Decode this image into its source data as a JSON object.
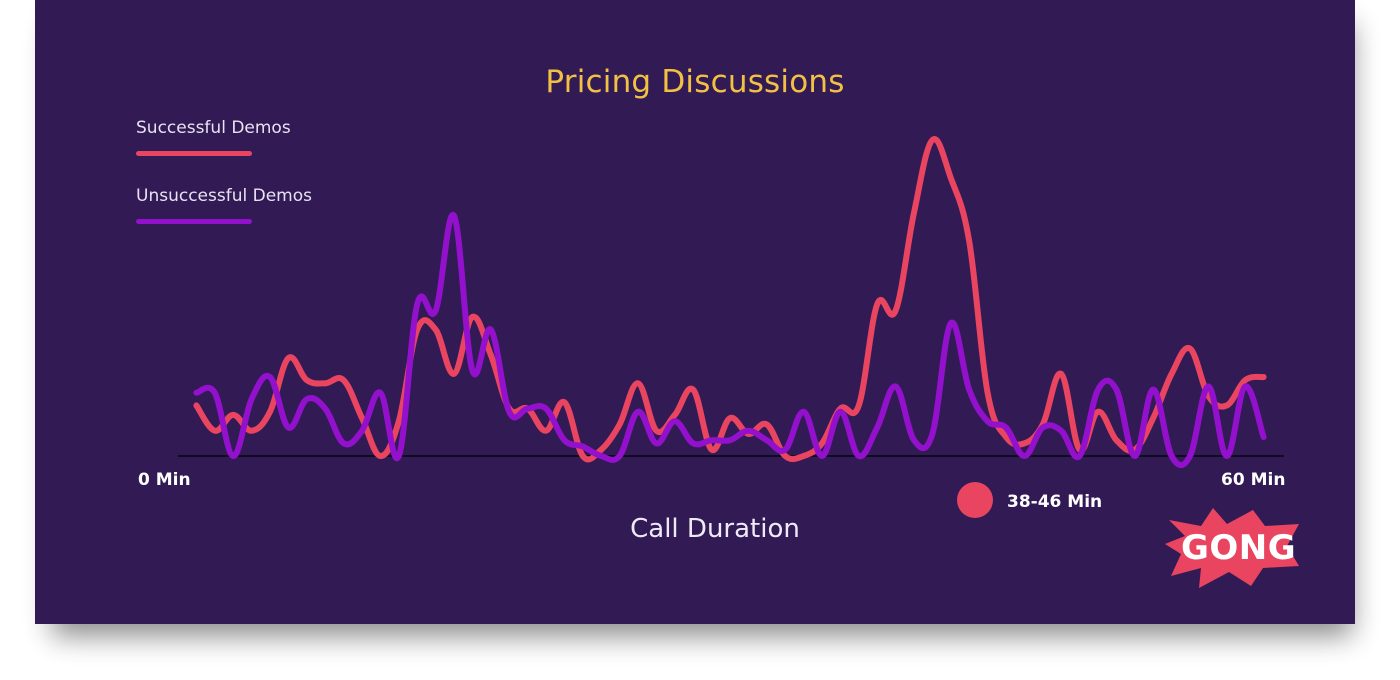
{
  "chart_data": {
    "type": "line",
    "title": "Pricing Discussions",
    "xlabel": "Call Duration",
    "ylabel": "",
    "xlim": [
      0,
      60
    ],
    "ylim": [
      0,
      100
    ],
    "x_tick_labels": [
      "0 Min",
      "60 Min"
    ],
    "legend_placement": "top-left",
    "grid": false,
    "highlight": {
      "label": "38-46 Min",
      "range": [
        38,
        46
      ]
    },
    "series": [
      {
        "name": "Successful Demos",
        "color": "#e94560",
        "x": [
          1,
          2,
          3,
          4,
          5,
          6,
          7,
          8,
          9,
          10,
          11,
          12,
          13,
          14,
          15,
          16,
          17,
          18,
          19,
          20,
          21,
          22,
          23,
          24,
          25,
          26,
          27,
          28,
          29,
          30,
          31,
          32,
          33,
          34,
          35,
          36,
          37,
          38,
          39,
          40,
          41,
          42,
          43,
          44,
          45,
          46,
          47,
          48,
          49,
          50,
          51,
          52,
          53,
          54,
          55,
          56,
          57,
          58,
          59
        ],
        "values": [
          16,
          8,
          13,
          8,
          14,
          31,
          24,
          23,
          24,
          12,
          0,
          11,
          40,
          40,
          26,
          44,
          32,
          15,
          15,
          8,
          17,
          0,
          2,
          10,
          23,
          8,
          13,
          21,
          2,
          12,
          7,
          10,
          0,
          0,
          4,
          15,
          16,
          48,
          46,
          77,
          100,
          88,
          68,
          20,
          6,
          4,
          10,
          26,
          2,
          14,
          5,
          2,
          12,
          26,
          34,
          19,
          16,
          24,
          25
        ]
      },
      {
        "name": "Unsuccessful Demos",
        "color": "#9311cc",
        "x": [
          1,
          2,
          3,
          4,
          5,
          6,
          7,
          8,
          9,
          10,
          11,
          12,
          13,
          14,
          15,
          16,
          17,
          18,
          19,
          20,
          21,
          22,
          23,
          24,
          25,
          26,
          27,
          28,
          29,
          30,
          31,
          32,
          33,
          34,
          35,
          36,
          37,
          38,
          39,
          40,
          41,
          42,
          43,
          44,
          45,
          46,
          47,
          48,
          49,
          50,
          51,
          52,
          53,
          54,
          55,
          56,
          57,
          58,
          59
        ],
        "values": [
          20,
          20,
          0,
          18,
          25,
          9,
          18,
          15,
          4,
          8,
          20,
          0,
          48,
          46,
          76,
          27,
          40,
          14,
          15,
          15,
          5,
          3,
          0,
          0,
          14,
          4,
          11,
          4,
          5,
          5,
          8,
          5,
          2,
          14,
          0,
          14,
          0,
          9,
          22,
          5,
          7,
          42,
          21,
          11,
          9,
          0,
          9,
          8,
          0,
          21,
          21,
          0,
          21,
          0,
          0,
          22,
          0,
          22,
          6
        ]
      }
    ]
  },
  "brand": {
    "logo_text": "GONG",
    "logo_color": "#e94560",
    "background": "#321a55",
    "title_color": "#f2c144"
  }
}
